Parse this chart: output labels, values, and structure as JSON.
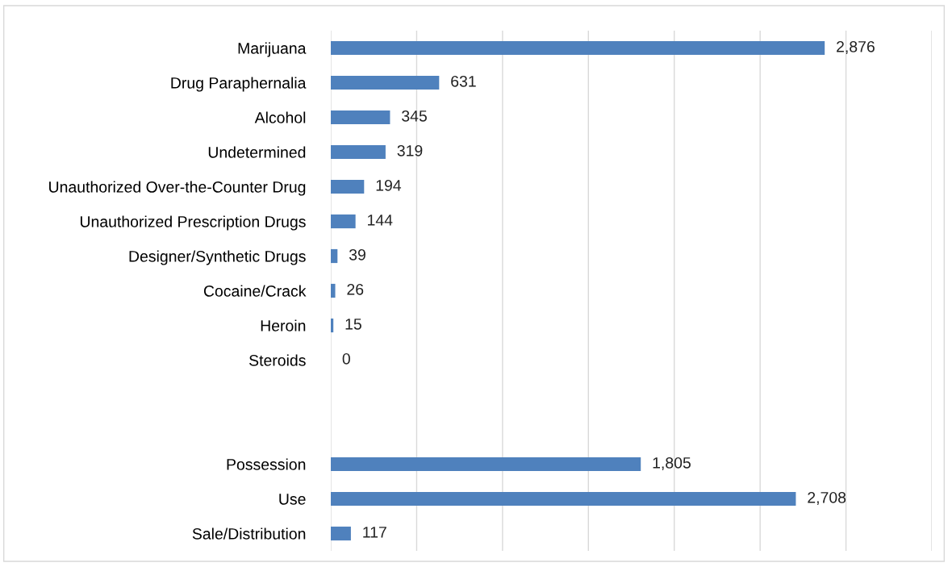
{
  "chart_data": {
    "type": "bar",
    "orientation": "horizontal",
    "categories": [
      "Marijuana",
      "Drug Paraphernalia",
      "Alcohol",
      "Undetermined",
      "Unauthorized Over-the-Counter Drug",
      "Unauthorized Prescription Drugs",
      "Designer/Synthetic Drugs",
      "Cocaine/Crack",
      "Heroin",
      "Steroids",
      null,
      null,
      "Possession",
      "Use",
      "Sale/Distribution"
    ],
    "values": [
      2876,
      631,
      345,
      319,
      194,
      144,
      39,
      26,
      15,
      0,
      null,
      null,
      1805,
      2708,
      117
    ],
    "value_labels": [
      "2,876",
      "631",
      "345",
      "319",
      "194",
      "144",
      "39",
      "26",
      "15",
      "0",
      null,
      null,
      "1,805",
      "2,708",
      "117"
    ],
    "color": "#4f81bd",
    "xlim": [
      0,
      3500
    ],
    "xticks": [
      {
        "value": 0,
        "label": null
      },
      {
        "value": 500,
        "label": null
      },
      {
        "value": 1000,
        "label": null
      },
      {
        "value": 1500,
        "label": null
      },
      {
        "value": 2000,
        "label": null
      },
      {
        "value": 2500,
        "label": null
      },
      {
        "value": 3000,
        "label": null
      },
      {
        "value": 3500,
        "label": null
      }
    ],
    "grid": "x",
    "tick_labels": "y"
  }
}
